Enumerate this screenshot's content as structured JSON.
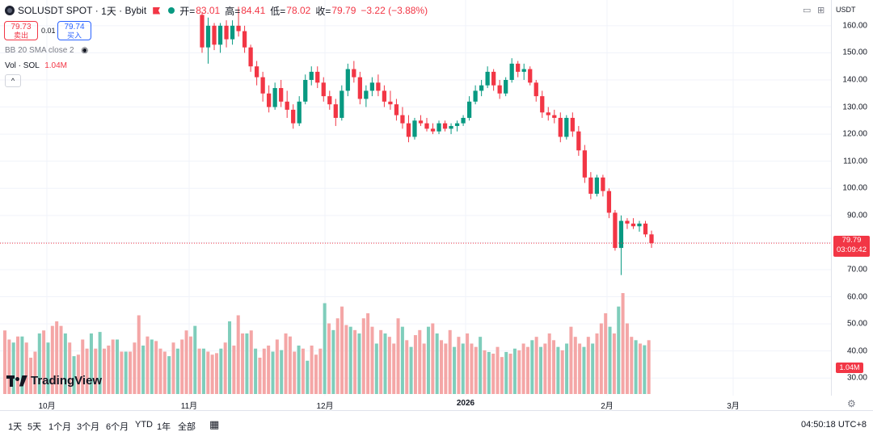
{
  "header": {
    "symbol": "SOLUSDT SPOT",
    "interval": "1天",
    "exchange": "Bybit",
    "open_label": "开=",
    "open": "83.01",
    "high_label": "高=",
    "high": "84.41",
    "low_label": "低=",
    "low": "78.02",
    "close_label": "收=",
    "close": "79.79",
    "change": "−3.22 (−3.88%)"
  },
  "trade": {
    "sell_price": "79.73",
    "sell_label": "卖出",
    "spread": "0.01",
    "buy_price": "79.74",
    "buy_label": "买入"
  },
  "indicators": {
    "bb": "BB 20 SMA close 2",
    "vol_name": "Vol · SOL",
    "vol_value": "1.04M"
  },
  "price_axis": {
    "currency": "USDT",
    "ticks": [
      "160.00",
      "150.00",
      "140.00",
      "130.00",
      "120.00",
      "110.00",
      "100.00",
      "90.00",
      "80.00",
      "70.00",
      "60.00",
      "50.00",
      "40.00",
      "30.00"
    ],
    "last_price": "79.79",
    "countdown": "03:09:42",
    "volume_label": "1.04M"
  },
  "time_axis": {
    "labels": [
      {
        "text": "10月",
        "bold": false
      },
      {
        "text": "11月",
        "bold": false
      },
      {
        "text": "12月",
        "bold": false
      },
      {
        "text": "2026",
        "bold": true
      },
      {
        "text": "2月",
        "bold": false
      },
      {
        "text": "3月",
        "bold": false
      }
    ]
  },
  "timeframes": [
    "1天",
    "5天",
    "1个月",
    "3个月",
    "6个月",
    "YTD",
    "1年",
    "全部"
  ],
  "clock": "04:50:18 UTC+8",
  "brand": "TradingView",
  "icons": [
    "eye-icon",
    "chevron-up-icon",
    "calendar-icon",
    "settings-icon",
    "gear-icon"
  ],
  "colors": {
    "up": "#089981",
    "down": "#f23645",
    "up_volume": "#7fcdbb",
    "down_volume": "#f4a6a6"
  },
  "chart_data": {
    "type": "candlestick",
    "ylim": [
      25,
      168
    ],
    "candles": [
      [
        164.0,
        165.0,
        150.0,
        152.0
      ],
      [
        152.0,
        163.0,
        146.0,
        160.0
      ],
      [
        160.0,
        161.0,
        151.0,
        153.0
      ],
      [
        153.0,
        161.0,
        150.0,
        160.0
      ],
      [
        160.0,
        162.0,
        152.0,
        155.0
      ],
      [
        155.0,
        162.0,
        153.0,
        160.0
      ],
      [
        160.0,
        167.0,
        156.0,
        158.0
      ],
      [
        158.0,
        160.0,
        150.0,
        152.0
      ],
      [
        152.0,
        153.0,
        143.0,
        145.0
      ],
      [
        145.0,
        147.0,
        138.0,
        141.0
      ],
      [
        141.0,
        143.0,
        132.0,
        135.0
      ],
      [
        135.0,
        138.0,
        128.0,
        130.0
      ],
      [
        130.0,
        139.0,
        129.0,
        137.0
      ],
      [
        137.0,
        140.0,
        130.0,
        132.0
      ],
      [
        132.0,
        136.0,
        126.0,
        129.0
      ],
      [
        129.0,
        131.0,
        122.0,
        124.0
      ],
      [
        124.0,
        134.0,
        123.0,
        132.0
      ],
      [
        132.0,
        142.0,
        131.0,
        140.0
      ],
      [
        140.0,
        145.0,
        138.0,
        143.0
      ],
      [
        143.0,
        145.0,
        137.0,
        139.0
      ],
      [
        139.0,
        141.0,
        132.0,
        134.0
      ],
      [
        134.0,
        136.0,
        129.0,
        131.0
      ],
      [
        131.0,
        133.0,
        123.0,
        126.0
      ],
      [
        126.0,
        138.0,
        125.0,
        136.0
      ],
      [
        136.0,
        146.0,
        134.0,
        144.0
      ],
      [
        144.0,
        147.0,
        139.0,
        141.0
      ],
      [
        141.0,
        143.0,
        131.0,
        133.0
      ],
      [
        133.0,
        138.0,
        130.0,
        136.0
      ],
      [
        136.0,
        141.0,
        134.0,
        139.0
      ],
      [
        139.0,
        142.0,
        134.0,
        136.0
      ],
      [
        136.0,
        138.0,
        130.0,
        132.0
      ],
      [
        132.0,
        136.0,
        129.0,
        131.0
      ],
      [
        131.0,
        133.0,
        125.0,
        127.0
      ],
      [
        127.0,
        130.0,
        122.0,
        124.0
      ],
      [
        124.0,
        127.0,
        117.0,
        119.0
      ],
      [
        119.0,
        126.0,
        118.0,
        125.0
      ],
      [
        125.0,
        127.0,
        123.0,
        124.0
      ],
      [
        124.0,
        126.0,
        121.0,
        122.0
      ],
      [
        122.0,
        124.0,
        120.0,
        121.0
      ],
      [
        121.0,
        125.0,
        120.0,
        124.0
      ],
      [
        124.0,
        125.0,
        121.0,
        122.0
      ],
      [
        122.0,
        124.0,
        120.0,
        123.0
      ],
      [
        123.0,
        125.0,
        121.0,
        124.0
      ],
      [
        124.0,
        127.0,
        123.0,
        126.0
      ],
      [
        126.0,
        134.0,
        125.0,
        132.0
      ],
      [
        132.0,
        138.0,
        131.0,
        136.0
      ],
      [
        136.0,
        140.0,
        134.0,
        138.0
      ],
      [
        138.0,
        145.0,
        137.0,
        143.0
      ],
      [
        143.0,
        144.0,
        136.0,
        138.0
      ],
      [
        138.0,
        140.0,
        133.0,
        135.0
      ],
      [
        135.0,
        141.0,
        134.0,
        140.0
      ],
      [
        140.0,
        148.0,
        139.0,
        146.0
      ],
      [
        146.0,
        147.0,
        141.0,
        143.0
      ],
      [
        143.0,
        146.0,
        140.0,
        144.0
      ],
      [
        144.0,
        145.0,
        138.0,
        139.0
      ],
      [
        139.0,
        140.0,
        132.0,
        134.0
      ],
      [
        134.0,
        136.0,
        126.0,
        128.0
      ],
      [
        128.0,
        130.0,
        125.0,
        127.0
      ],
      [
        127.0,
        129.0,
        124.0,
        126.0
      ],
      [
        126.0,
        128.0,
        117.0,
        119.0
      ],
      [
        119.0,
        127.0,
        118.0,
        126.0
      ],
      [
        126.0,
        128.0,
        119.0,
        121.0
      ],
      [
        121.0,
        123.0,
        112.0,
        114.0
      ],
      [
        114.0,
        116.0,
        102.0,
        104.0
      ],
      [
        104.0,
        106.0,
        96.0,
        98.0
      ],
      [
        98.0,
        105.0,
        97.0,
        104.0
      ],
      [
        104.0,
        105.0,
        97.0,
        99.0
      ],
      [
        99.0,
        100.0,
        89.0,
        91.0
      ],
      [
        91.0,
        92.0,
        77.0,
        78.0
      ],
      [
        78.0,
        90.0,
        68.0,
        88.0
      ],
      [
        88.0,
        89.0,
        85.0,
        87.0
      ],
      [
        87.0,
        89.0,
        85.0,
        86.0
      ],
      [
        86.0,
        88.0,
        84.0,
        87.0
      ],
      [
        87.0,
        88.0,
        82.0,
        83.0
      ],
      [
        83.01,
        84.41,
        78.02,
        79.79
      ]
    ],
    "volume": [
      42,
      38,
      45,
      52,
      41,
      40,
      38,
      36,
      45,
      48,
      40,
      30,
      38,
      36,
      34,
      30,
      45,
      40,
      32,
      28,
      35,
      38,
      30,
      40,
      42,
      36,
      32,
      30,
      38,
      28,
      34,
      30,
      36,
      30,
      28,
      34,
      26,
      25,
      24,
      28,
      22,
      25,
      24,
      27,
      26,
      30,
      28,
      32,
      34,
      28,
      30,
      36,
      32,
      28,
      26,
      30,
      40,
      34,
      30,
      28,
      34,
      30,
      36,
      42,
      48,
      40,
      36,
      52,
      60,
      42,
      34,
      32,
      30,
      29,
      32
    ],
    "last_price": 79.79
  }
}
